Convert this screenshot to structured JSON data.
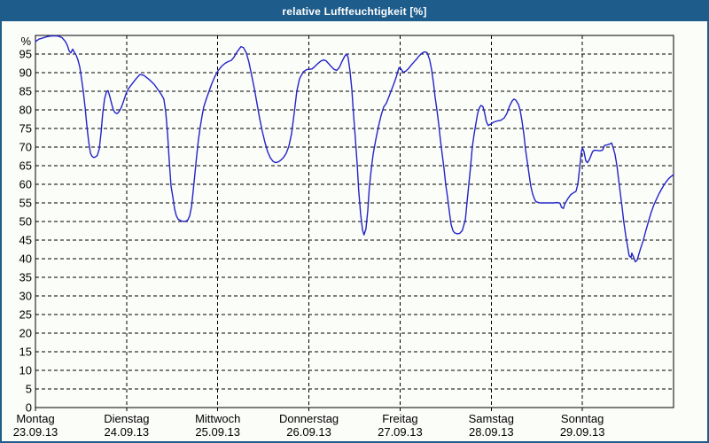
{
  "window": {
    "title": "relative Luftfeuchtigkeit [%]",
    "colors": {
      "chrome": "#1e5c8c",
      "background": "#fbfdf9",
      "line": "#2323c8",
      "grid": "#000000",
      "title_text": "#ffffff"
    }
  },
  "chart_data": {
    "type": "line",
    "title": "relative Luftfeuchtigkeit [%]",
    "ylabel": "%",
    "xlabel": "",
    "ylim": [
      0,
      100
    ],
    "yticks": [
      0,
      5,
      10,
      15,
      20,
      25,
      30,
      35,
      40,
      45,
      50,
      55,
      60,
      65,
      70,
      75,
      80,
      85,
      90,
      95
    ],
    "grid": "dashed",
    "legend": false,
    "x_axis": {
      "unit": "hours since Mon 23.09.13 00:00",
      "range": [
        0,
        168
      ]
    },
    "categories": [
      {
        "label": "Montag",
        "date": "23.09.13"
      },
      {
        "label": "Dienstag",
        "date": "24.09.13"
      },
      {
        "label": "Mittwoch",
        "date": "25.09.13"
      },
      {
        "label": "Donnerstag",
        "date": "26.09.13"
      },
      {
        "label": "Freitag",
        "date": "27.09.13"
      },
      {
        "label": "Samstag",
        "date": "28.09.13"
      },
      {
        "label": "Sonntag",
        "date": "29.09.13"
      }
    ],
    "series": [
      {
        "name": "relative Luftfeuchtigkeit [%]",
        "color": "#2323c8",
        "points": [
          [
            0,
            98.3
          ],
          [
            0.9,
            99
          ],
          [
            1.9,
            99.3
          ],
          [
            2.8,
            99.6
          ],
          [
            3.7,
            99.8
          ],
          [
            5.1,
            99.9
          ],
          [
            6.1,
            99.8
          ],
          [
            7,
            99.4
          ],
          [
            7.9,
            98.3
          ],
          [
            8.4,
            97.3
          ],
          [
            8.9,
            95.8
          ],
          [
            9.3,
            95.3
          ],
          [
            9.8,
            96.3
          ],
          [
            10.3,
            95.4
          ],
          [
            10.7,
            94.7
          ],
          [
            11.2,
            93.4
          ],
          [
            11.7,
            91.4
          ],
          [
            12.1,
            88.5
          ],
          [
            12.6,
            85
          ],
          [
            13.1,
            80.5
          ],
          [
            13.5,
            76
          ],
          [
            14,
            71.5
          ],
          [
            14.5,
            68.3
          ],
          [
            14.9,
            67.5
          ],
          [
            15.4,
            67.2
          ],
          [
            15.9,
            67.4
          ],
          [
            16.3,
            67.8
          ],
          [
            16.8,
            69.5
          ],
          [
            17.3,
            74
          ],
          [
            17.7,
            79
          ],
          [
            18.2,
            83
          ],
          [
            18.7,
            84.8
          ],
          [
            19.1,
            85.2
          ],
          [
            19.6,
            83.5
          ],
          [
            20.1,
            81.5
          ],
          [
            20.5,
            80
          ],
          [
            21,
            79.2
          ],
          [
            21.5,
            79
          ],
          [
            21.9,
            79.4
          ],
          [
            22.4,
            80.2
          ],
          [
            22.9,
            81.4
          ],
          [
            23.3,
            82.7
          ],
          [
            24,
            84.8
          ],
          [
            24.7,
            86
          ],
          [
            25.7,
            87.3
          ],
          [
            26.6,
            88.5
          ],
          [
            27.5,
            89.5
          ],
          [
            28.5,
            89.3
          ],
          [
            29.4,
            88.6
          ],
          [
            30.3,
            87.8
          ],
          [
            31.3,
            86.8
          ],
          [
            32.2,
            85.5
          ],
          [
            33.1,
            84.2
          ],
          [
            33.8,
            82.9
          ],
          [
            34.3,
            79.5
          ],
          [
            34.8,
            73.5
          ],
          [
            35.2,
            66.5
          ],
          [
            35.7,
            59.5
          ],
          [
            36.2,
            56.5
          ],
          [
            36.6,
            53.5
          ],
          [
            37.1,
            51.5
          ],
          [
            37.6,
            50.6
          ],
          [
            38.5,
            50.1
          ],
          [
            39.4,
            50
          ],
          [
            40.1,
            50.4
          ],
          [
            40.6,
            51.5
          ],
          [
            41.1,
            54
          ],
          [
            41.5,
            58
          ],
          [
            42,
            63
          ],
          [
            42.5,
            68
          ],
          [
            42.9,
            72
          ],
          [
            43.4,
            75.5
          ],
          [
            43.9,
            78.5
          ],
          [
            44.3,
            80.8
          ],
          [
            45,
            83
          ],
          [
            45.7,
            85
          ],
          [
            46.4,
            87
          ],
          [
            47.1,
            88.7
          ],
          [
            48,
            90.4
          ],
          [
            49,
            91.7
          ],
          [
            49.9,
            92.5
          ],
          [
            50.8,
            93
          ],
          [
            51.6,
            93.3
          ],
          [
            52.3,
            94.2
          ],
          [
            52.9,
            95.3
          ],
          [
            53.7,
            96.4
          ],
          [
            54.1,
            97
          ],
          [
            54.8,
            96.7
          ],
          [
            55.5,
            95.3
          ],
          [
            56.2,
            92.8
          ],
          [
            56.9,
            89.3
          ],
          [
            57.6,
            85.8
          ],
          [
            58.3,
            81.8
          ],
          [
            59,
            77.8
          ],
          [
            59.7,
            74.3
          ],
          [
            60.4,
            71.3
          ],
          [
            61.1,
            68.8
          ],
          [
            61.8,
            67.2
          ],
          [
            62.5,
            66.2
          ],
          [
            63.2,
            65.8
          ],
          [
            63.9,
            66
          ],
          [
            64.6,
            66.5
          ],
          [
            65.3,
            67.2
          ],
          [
            66,
            68.3
          ],
          [
            66.7,
            70.2
          ],
          [
            67.4,
            73.5
          ],
          [
            68.1,
            79
          ],
          [
            68.8,
            85
          ],
          [
            69.5,
            88.3
          ],
          [
            70.5,
            90.2
          ],
          [
            71.4,
            90.8
          ],
          [
            72.1,
            90.9
          ],
          [
            72.8,
            91
          ],
          [
            73.5,
            91.6
          ],
          [
            74.2,
            92.3
          ],
          [
            75.1,
            93.1
          ],
          [
            75.8,
            93.4
          ],
          [
            76.5,
            93.2
          ],
          [
            77.2,
            92.4
          ],
          [
            77.9,
            91.6
          ],
          [
            78.6,
            90.9
          ],
          [
            79.3,
            90.6
          ],
          [
            80,
            91.4
          ],
          [
            80.7,
            93
          ],
          [
            81.4,
            94.4
          ],
          [
            81.9,
            95
          ],
          [
            82.3,
            94.2
          ],
          [
            82.8,
            90.5
          ],
          [
            83.3,
            85.5
          ],
          [
            83.7,
            79.5
          ],
          [
            84.2,
            72.5
          ],
          [
            84.7,
            65.5
          ],
          [
            85.1,
            58.5
          ],
          [
            85.6,
            52
          ],
          [
            86.1,
            47.8
          ],
          [
            86.5,
            46.4
          ],
          [
            87,
            48
          ],
          [
            87.5,
            53
          ],
          [
            87.9,
            59
          ],
          [
            88.4,
            64
          ],
          [
            88.9,
            68
          ],
          [
            89.6,
            72
          ],
          [
            90.3,
            75.5
          ],
          [
            91,
            78.5
          ],
          [
            91.7,
            80.8
          ],
          [
            92.4,
            81.8
          ],
          [
            93.3,
            84.2
          ],
          [
            94.3,
            86.8
          ],
          [
            95,
            88.8
          ],
          [
            95.7,
            91.3
          ],
          [
            96.1,
            91.2
          ],
          [
            96.8,
            90.1
          ],
          [
            97.5,
            90.4
          ],
          [
            98.2,
            91.1
          ],
          [
            98.9,
            92
          ],
          [
            99.6,
            92.8
          ],
          [
            100.3,
            93.6
          ],
          [
            101,
            94.5
          ],
          [
            101.7,
            95.2
          ],
          [
            102.4,
            95.6
          ],
          [
            103.1,
            95.4
          ],
          [
            103.8,
            93.4
          ],
          [
            104.3,
            90.8
          ],
          [
            104.8,
            87.3
          ],
          [
            105.2,
            83.5
          ],
          [
            105.7,
            80
          ],
          [
            106.2,
            76
          ],
          [
            106.6,
            72
          ],
          [
            107.1,
            68
          ],
          [
            107.6,
            64
          ],
          [
            108,
            60
          ],
          [
            108.5,
            56.5
          ],
          [
            109,
            52.5
          ],
          [
            109.4,
            49.3
          ],
          [
            109.9,
            47.6
          ],
          [
            110.3,
            47
          ],
          [
            111,
            46.7
          ],
          [
            111.7,
            46.8
          ],
          [
            112.4,
            47.6
          ],
          [
            113.2,
            50.5
          ],
          [
            113.6,
            55
          ],
          [
            114.1,
            60
          ],
          [
            114.6,
            65
          ],
          [
            115,
            70
          ],
          [
            115.5,
            73.5
          ],
          [
            116,
            76.5
          ],
          [
            116.4,
            79
          ],
          [
            116.9,
            80.6
          ],
          [
            117.3,
            81.2
          ],
          [
            117.8,
            80.9
          ],
          [
            118.3,
            79
          ],
          [
            118.7,
            76.9
          ],
          [
            119.2,
            75.8
          ],
          [
            119.9,
            76.2
          ],
          [
            120.6,
            76.7
          ],
          [
            121.5,
            77
          ],
          [
            122.5,
            77.2
          ],
          [
            123.4,
            77.8
          ],
          [
            124.1,
            79
          ],
          [
            124.8,
            81
          ],
          [
            125.5,
            82.4
          ],
          [
            126,
            82.9
          ],
          [
            126.5,
            82.6
          ],
          [
            127.2,
            81.4
          ],
          [
            127.6,
            79.9
          ],
          [
            128.1,
            77
          ],
          [
            128.6,
            73.5
          ],
          [
            129,
            69.5
          ],
          [
            129.5,
            66
          ],
          [
            130,
            62.5
          ],
          [
            130.4,
            59.5
          ],
          [
            130.9,
            57.4
          ],
          [
            131.4,
            56
          ],
          [
            131.8,
            55.3
          ],
          [
            132.8,
            55
          ],
          [
            133.7,
            55
          ],
          [
            134.6,
            55
          ],
          [
            135.5,
            55
          ],
          [
            136.4,
            55
          ],
          [
            137.4,
            55.1
          ],
          [
            138.1,
            54.9
          ],
          [
            138.5,
            53.8
          ],
          [
            139,
            53.5
          ],
          [
            139.4,
            54.8
          ],
          [
            140.2,
            56.2
          ],
          [
            140.9,
            57.2
          ],
          [
            141.6,
            57.7
          ],
          [
            142.3,
            58.1
          ],
          [
            142.8,
            60
          ],
          [
            143.3,
            64.5
          ],
          [
            143.7,
            68.5
          ],
          [
            144,
            69.8
          ],
          [
            144.4,
            68.8
          ],
          [
            144.9,
            66.3
          ],
          [
            145.3,
            65.8
          ],
          [
            145.8,
            66.6
          ],
          [
            146.3,
            67.8
          ],
          [
            146.7,
            68.8
          ],
          [
            147.2,
            69.2
          ],
          [
            147.9,
            69.1
          ],
          [
            148.6,
            69
          ],
          [
            149.3,
            69.2
          ],
          [
            149.8,
            70.4
          ],
          [
            150.5,
            70.6
          ],
          [
            151.2,
            70.8
          ],
          [
            151.7,
            71.1
          ],
          [
            152.1,
            69.8
          ],
          [
            152.6,
            68
          ],
          [
            153.1,
            65
          ],
          [
            153.5,
            61.5
          ],
          [
            154,
            57.5
          ],
          [
            154.5,
            53.5
          ],
          [
            154.9,
            49.8
          ],
          [
            155.4,
            46.3
          ],
          [
            155.9,
            43.3
          ],
          [
            156.3,
            40.8
          ],
          [
            156.8,
            40.3
          ],
          [
            157,
            41.5
          ],
          [
            157.5,
            40.4
          ],
          [
            157.9,
            39.2
          ],
          [
            158.4,
            39.6
          ],
          [
            158.8,
            41
          ],
          [
            159.3,
            42.7
          ],
          [
            160,
            44.8
          ],
          [
            160.7,
            47.5
          ],
          [
            161.4,
            50
          ],
          [
            162.1,
            52.4
          ],
          [
            162.8,
            54.4
          ],
          [
            163.5,
            56
          ],
          [
            164.2,
            57.5
          ],
          [
            164.9,
            58.8
          ],
          [
            165.6,
            60
          ],
          [
            166.3,
            61
          ],
          [
            167,
            61.8
          ],
          [
            168,
            62.6
          ]
        ]
      }
    ]
  }
}
